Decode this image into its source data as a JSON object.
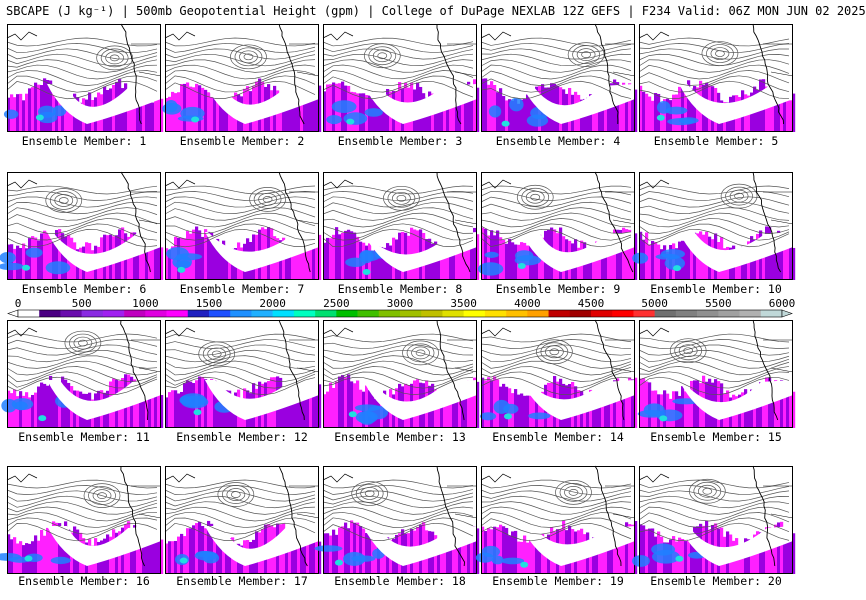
{
  "title": "SBCAPE (J kg⁻¹) | 500mb Geopotential Height (gpm) | College of DuPage NEXLAB 12Z GEFS | F234 Valid: 06Z MON JUN 02 2025",
  "member_label_prefix": "Ensemble Member: ",
  "members": [
    1,
    2,
    3,
    4,
    5,
    6,
    7,
    8,
    9,
    10,
    11,
    12,
    13,
    14,
    15,
    16,
    17,
    18,
    19,
    20
  ],
  "colorbar": {
    "ticks": [
      "0",
      "500",
      "1000",
      "1500",
      "2000",
      "2500",
      "3000",
      "3500",
      "4000",
      "4500",
      "5000",
      "5500",
      "6000"
    ],
    "min": 0,
    "max": 6000,
    "colors": [
      "#ffffff",
      "#4b0082",
      "#6a0dad",
      "#8a2be2",
      "#a020f0",
      "#c000c0",
      "#e000e0",
      "#ff00ff",
      "#2020c0",
      "#1e50ff",
      "#1e90ff",
      "#20b0ff",
      "#00e0ff",
      "#00ffc0",
      "#00e070",
      "#00c000",
      "#40c000",
      "#80c000",
      "#a0c000",
      "#c0c000",
      "#e0e000",
      "#ffff00",
      "#ffe000",
      "#ffc000",
      "#ffa000",
      "#c00000",
      "#a00000",
      "#e00000",
      "#ff0000",
      "#ff3030",
      "#707070",
      "#808080",
      "#909090",
      "#a0a0a0",
      "#b0b0b0",
      "#c0d8d8"
    ]
  },
  "colors": {
    "cape_low": "#9a00e0",
    "cape_mid": "#ff20ff",
    "cape_high": "#2080ff",
    "cape_max": "#20e0e0",
    "contour": "#555555",
    "coast": "#000000"
  }
}
